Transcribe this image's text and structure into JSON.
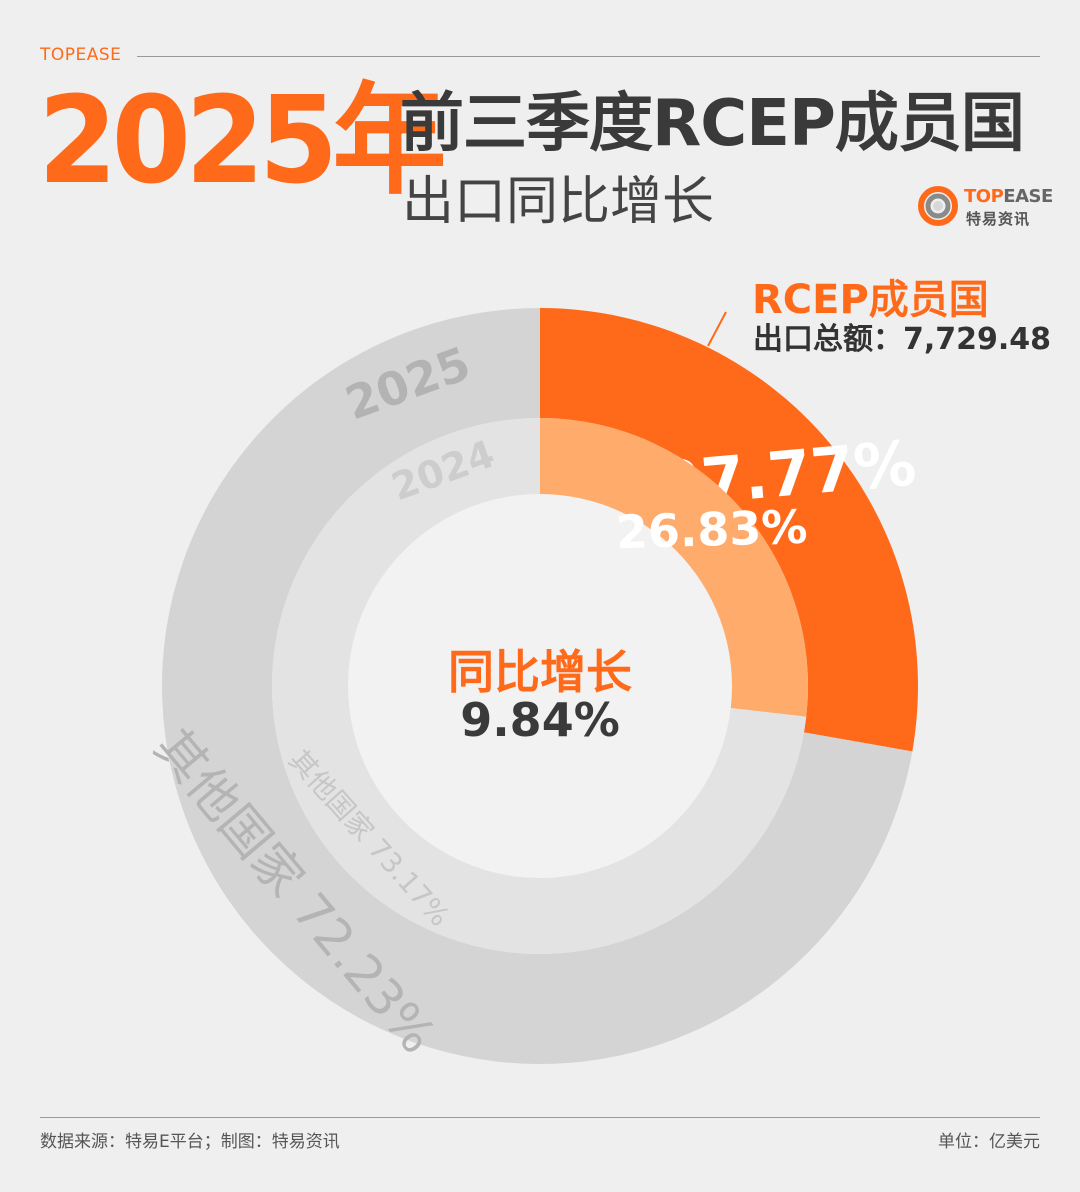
{
  "header": {
    "brand": "TOPEASE",
    "year_title": "2025年",
    "title_main": "前三季度RCEP成员国",
    "title_sub": "出口同比增长"
  },
  "logo": {
    "name_en_orange": "TOP",
    "name_en_gray": "EASE",
    "name_cn": "特易资讯"
  },
  "callout": {
    "title": "RCEP成员国",
    "value": "出口总额：7,729.48"
  },
  "center": {
    "label": "同比增长",
    "value": "9.84%"
  },
  "footer": {
    "source": "数据来源：特易E平台；制图：特易资讯",
    "unit": "单位：亿美元"
  },
  "colors": {
    "accent": "#ff6a1a",
    "accent_light": "#ffab6b",
    "ring_outer_gray": "#d4d4d4",
    "ring_inner_gray": "#e3e3e3",
    "text_dark": "#3a3a3a"
  },
  "chart_data": {
    "type": "pie",
    "variant": "nested-donut",
    "series": [
      {
        "name": "2025",
        "categories": [
          "RCEP成员国",
          "其他国家"
        ],
        "values": [
          27.77,
          72.23
        ],
        "labels": [
          "27.77%",
          "其他国家 72.23%"
        ]
      },
      {
        "name": "2024",
        "categories": [
          "RCEP成员国",
          "其他国家"
        ],
        "values": [
          26.83,
          73.17
        ],
        "labels": [
          "26.83%",
          "其他国家 73.17%"
        ]
      }
    ]
  }
}
